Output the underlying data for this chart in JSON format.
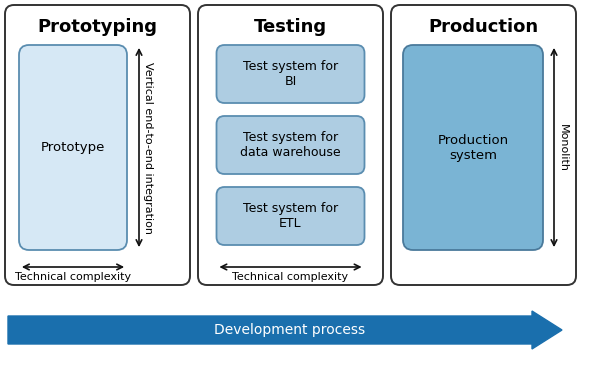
{
  "bg_color": "#ffffff",
  "outer_box_fill": "#ffffff",
  "outer_box_edge": "#333333",
  "proto_box_fill": "#d6e8f5",
  "proto_box_edge": "#5a8db0",
  "prod_box_fill": "#7ab4d4",
  "prod_box_edge": "#4a7a9b",
  "test_box_fill": "#aecde2",
  "test_box_edge": "#5a8db0",
  "panel_titles": [
    "Prototyping",
    "Testing",
    "Production"
  ],
  "panel_title_fontsize": 13,
  "arrow_color": "#111111",
  "dev_arrow_color": "#1a6fad",
  "dev_arrow_text": "Development process",
  "dev_arrow_text_color": "#ffffff",
  "prototype_label": "Prototype",
  "production_label": "Production\nsystem",
  "test_labels": [
    "Test system for\nBI",
    "Test system for\ndata warehouse",
    "Test system for\nETL"
  ],
  "vert_arrow_label": "Vertical end-to-end integration",
  "horiz_arrow_label1": "Technical complexity",
  "horiz_arrow_label2": "Technical complexity",
  "monolith_label": "Monolith",
  "inner_text_fontsize": 9.5,
  "label_fontsize": 8
}
